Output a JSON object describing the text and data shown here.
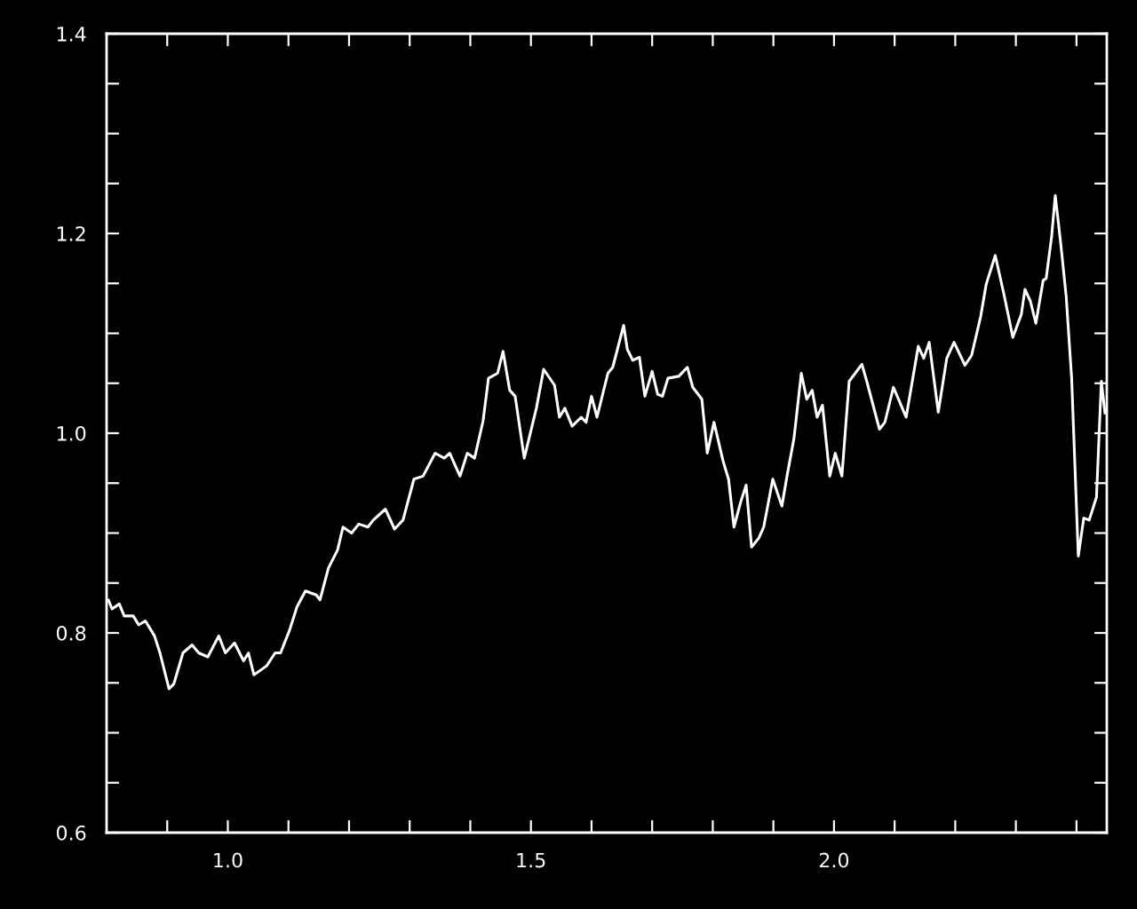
{
  "chart_data": {
    "type": "line",
    "x": [
      0.803,
      0.809,
      0.821,
      0.829,
      0.844,
      0.853,
      0.864,
      0.879,
      0.888,
      0.903,
      0.911,
      0.926,
      0.941,
      0.952,
      0.967,
      0.985,
      0.996,
      1.011,
      1.026,
      1.034,
      1.043,
      1.064,
      1.078,
      1.087,
      1.102,
      1.114,
      1.128,
      1.146,
      1.152,
      1.166,
      1.181,
      1.19,
      1.204,
      1.216,
      1.231,
      1.24,
      1.26,
      1.275,
      1.289,
      1.307,
      1.322,
      1.342,
      1.357,
      1.366,
      1.383,
      1.395,
      1.407,
      1.421,
      1.43,
      1.445,
      1.454,
      1.465,
      1.474,
      1.489,
      1.509,
      1.521,
      1.539,
      1.547,
      1.556,
      1.568,
      1.583,
      1.591,
      1.6,
      1.609,
      1.627,
      1.635,
      1.653,
      1.659,
      1.668,
      1.679,
      1.688,
      1.7,
      1.709,
      1.717,
      1.726,
      1.744,
      1.758,
      1.767,
      1.782,
      1.791,
      1.802,
      1.817,
      1.826,
      1.835,
      1.846,
      1.855,
      1.864,
      1.876,
      1.884,
      1.899,
      1.914,
      1.923,
      1.934,
      1.946,
      1.955,
      1.964,
      1.972,
      1.981,
      1.993,
      2.002,
      2.013,
      2.025,
      2.046,
      2.054,
      2.075,
      2.084,
      2.098,
      2.119,
      2.139,
      2.148,
      2.157,
      2.172,
      2.186,
      2.198,
      2.216,
      2.227,
      2.242,
      2.251,
      2.266,
      2.28,
      2.295,
      2.309,
      2.315,
      2.324,
      2.333,
      2.345,
      2.35,
      2.359,
      2.365,
      2.374,
      2.383,
      2.392,
      2.403,
      2.412,
      2.421,
      2.433,
      2.441,
      2.447
    ],
    "series": [
      {
        "color": "#ffffff",
        "values": [
          0.833,
          0.824,
          0.829,
          0.817,
          0.817,
          0.808,
          0.812,
          0.797,
          0.78,
          0.744,
          0.749,
          0.78,
          0.788,
          0.78,
          0.776,
          0.797,
          0.78,
          0.79,
          0.772,
          0.78,
          0.758,
          0.767,
          0.78,
          0.78,
          0.803,
          0.826,
          0.842,
          0.838,
          0.833,
          0.865,
          0.883,
          0.906,
          0.9,
          0.909,
          0.906,
          0.913,
          0.924,
          0.904,
          0.913,
          0.954,
          0.957,
          0.98,
          0.975,
          0.98,
          0.957,
          0.98,
          0.975,
          1.012,
          1.055,
          1.06,
          1.082,
          1.043,
          1.037,
          0.975,
          1.025,
          1.064,
          1.048,
          1.016,
          1.025,
          1.007,
          1.016,
          1.011,
          1.037,
          1.016,
          1.06,
          1.066,
          1.108,
          1.084,
          1.073,
          1.076,
          1.037,
          1.062,
          1.039,
          1.037,
          1.055,
          1.057,
          1.066,
          1.046,
          1.034,
          0.98,
          1.011,
          0.972,
          0.954,
          0.906,
          0.931,
          0.948,
          0.886,
          0.895,
          0.906,
          0.954,
          0.927,
          0.959,
          0.995,
          1.06,
          1.034,
          1.043,
          1.016,
          1.028,
          0.957,
          0.98,
          0.957,
          1.052,
          1.069,
          1.052,
          1.004,
          1.011,
          1.046,
          1.016,
          1.087,
          1.075,
          1.091,
          1.021,
          1.075,
          1.091,
          1.068,
          1.078,
          1.117,
          1.149,
          1.178,
          1.14,
          1.096,
          1.119,
          1.144,
          1.132,
          1.11,
          1.153,
          1.155,
          1.197,
          1.238,
          1.19,
          1.137,
          1.055,
          0.877,
          0.915,
          0.913,
          0.936,
          1.052,
          1.02
        ]
      }
    ],
    "xlim": [
      0.8,
      2.45
    ],
    "xticks": [
      {
        "value": 0.9,
        "label": null
      },
      {
        "value": 1.0,
        "label": "1.0"
      },
      {
        "value": 1.1,
        "label": null
      },
      {
        "value": 1.2,
        "label": null
      },
      {
        "value": 1.3,
        "label": null
      },
      {
        "value": 1.4,
        "label": null
      },
      1.5,
      {
        "value": 1.6,
        "label": null
      },
      {
        "value": 1.7,
        "label": null
      },
      {
        "value": 1.8,
        "label": null
      },
      {
        "value": 1.9,
        "label": null
      },
      {
        "value": 2.0,
        "label": "2.0"
      },
      {
        "value": 2.1,
        "label": null
      },
      {
        "value": 2.2,
        "label": null
      },
      {
        "value": 2.3,
        "label": null
      },
      {
        "value": 2.4,
        "label": null
      }
    ],
    "ylim": [
      0.6,
      1.4
    ],
    "yticks": [
      0.6,
      {
        "value": 0.65,
        "label": null
      },
      {
        "value": 0.7,
        "label": null
      },
      {
        "value": 0.75,
        "label": null
      },
      0.8,
      {
        "value": 0.85,
        "label": null
      },
      {
        "value": 0.9,
        "label": null
      },
      {
        "value": 0.95,
        "label": null
      },
      {
        "value": 1.0,
        "label": "1.0"
      },
      {
        "value": 1.05,
        "label": null
      },
      {
        "value": 1.1,
        "label": null
      },
      {
        "value": 1.15,
        "label": null
      },
      1.2,
      {
        "value": 1.25,
        "label": null
      },
      {
        "value": 1.3,
        "label": null
      },
      {
        "value": 1.35,
        "label": null
      },
      1.4
    ],
    "grid": false,
    "line_style": "solid"
  }
}
